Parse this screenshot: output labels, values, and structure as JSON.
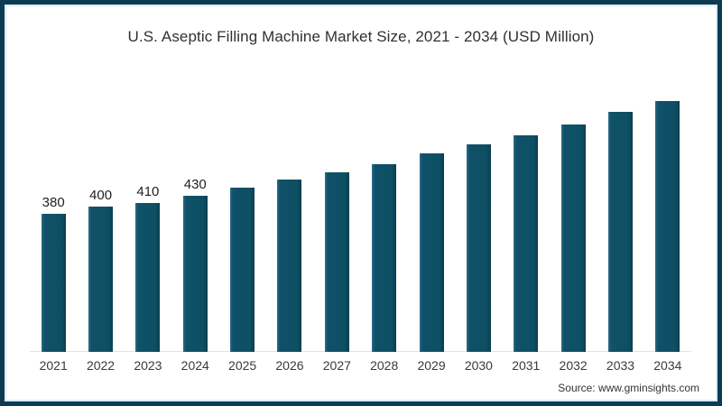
{
  "title": "U.S. Aseptic Filling Machine Market Size, 2021 - 2034 (USD Million)",
  "source_text": "Source: www.gminsights.com",
  "colors": {
    "bar": "#0d4f63",
    "frame": "#0d3c52",
    "frame_inner_line": "#d9eef6",
    "baseline": "#d7e6ec"
  },
  "chart_data": {
    "type": "bar",
    "title": "U.S. Aseptic Filling Machine Market Size, 2021 - 2034 (USD Million)",
    "categories": [
      "2021",
      "2022",
      "2023",
      "2024",
      "2025",
      "2026",
      "2027",
      "2028",
      "2029",
      "2030",
      "2031",
      "2032",
      "2033",
      "2034"
    ],
    "values": [
      380,
      400,
      410,
      430,
      452,
      473,
      495,
      515,
      545,
      570,
      595,
      625,
      660,
      690
    ],
    "data_labels": [
      "380",
      "400",
      "410",
      "430",
      "",
      "",
      "",
      "",
      "",
      "",
      "",
      "",
      "",
      ""
    ],
    "xlabel": "",
    "ylabel": "",
    "grid": false,
    "legend": "none",
    "axis_lines": "light baseline only, no y-axis"
  }
}
